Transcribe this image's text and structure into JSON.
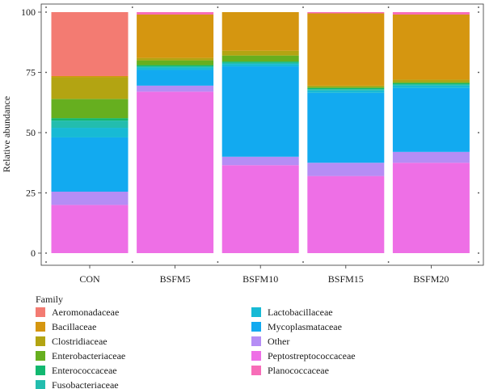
{
  "chart_data": {
    "type": "bar",
    "stacked": true,
    "title": "",
    "xlabel": "",
    "ylabel": "Relative abundance",
    "ylim": [
      0,
      100
    ],
    "yticks": [
      0,
      25,
      50,
      75,
      100
    ],
    "grid": false,
    "legend_position": "bottom",
    "legend_title": "Family",
    "categories": [
      "CON",
      "BSFM5",
      "BSFM10",
      "BSFM15",
      "BSFM20"
    ],
    "series": [
      {
        "name": "Peptostreptococcaceae",
        "color": "#EE6FE6",
        "values": [
          20,
          67,
          36.5,
          32,
          37.5
        ]
      },
      {
        "name": "Other",
        "color": "#B58DF5",
        "values": [
          5.5,
          2.5,
          3.5,
          5.5,
          4.5
        ]
      },
      {
        "name": "Mycoplasmataceae",
        "color": "#12AAF0",
        "values": [
          22.5,
          6.5,
          37.5,
          29,
          26.5
        ]
      },
      {
        "name": "Lactobacillaceae",
        "color": "#17BAD5",
        "values": [
          4,
          1,
          1,
          1,
          1
        ]
      },
      {
        "name": "Fusobacteriaceae",
        "color": "#23BDAE",
        "values": [
          3,
          0.5,
          0.5,
          0.5,
          0.5
        ]
      },
      {
        "name": "Enterococcaceae",
        "color": "#12B870",
        "values": [
          1,
          0.5,
          0.5,
          0.5,
          0.5
        ]
      },
      {
        "name": "Enterobacteriaceae",
        "color": "#66AF1F",
        "values": [
          8,
          2,
          2.5,
          0.5,
          0.5
        ]
      },
      {
        "name": "Clostridiaceae",
        "color": "#B3A412",
        "values": [
          9,
          1,
          2,
          0.5,
          1
        ]
      },
      {
        "name": "Bacillaceae",
        "color": "#D59610",
        "values": [
          0.5,
          18,
          16,
          30,
          27
        ]
      },
      {
        "name": "Aeromonadaceae",
        "color": "#F37B72",
        "values": [
          26.5,
          0,
          0,
          0,
          0
        ]
      },
      {
        "name": "Planococcaceae",
        "color": "#F76DB8",
        "values": [
          0,
          1,
          0,
          0.5,
          1
        ]
      }
    ],
    "legend": [
      {
        "name": "Aeromonadaceae",
        "color": "#F37B72"
      },
      {
        "name": "Bacillaceae",
        "color": "#D59610"
      },
      {
        "name": "Clostridiaceae",
        "color": "#B3A412"
      },
      {
        "name": "Enterobacteriaceae",
        "color": "#66AF1F"
      },
      {
        "name": "Enterococcaceae",
        "color": "#12B870"
      },
      {
        "name": "Fusobacteriaceae",
        "color": "#23BDAE"
      },
      {
        "name": "Lactobacillaceae",
        "color": "#17BAD5"
      },
      {
        "name": "Mycoplasmataceae",
        "color": "#12AAF0"
      },
      {
        "name": "Other",
        "color": "#B58DF5"
      },
      {
        "name": "Peptostreptococcaceae",
        "color": "#EE6FE6"
      },
      {
        "name": "Planococcaceae",
        "color": "#F76DB8"
      }
    ]
  }
}
